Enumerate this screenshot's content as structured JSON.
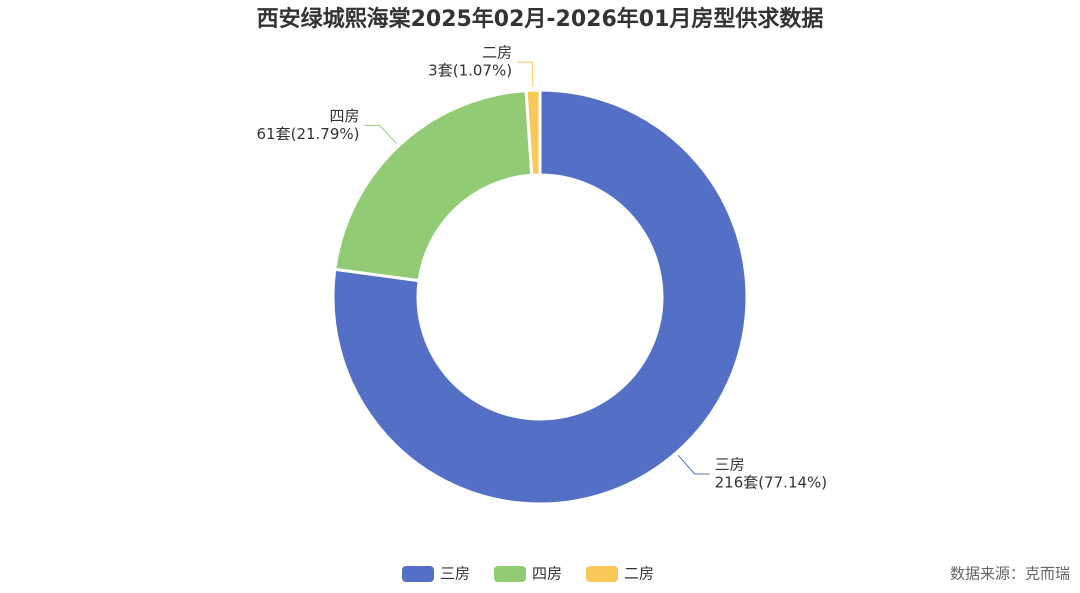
{
  "chart_data": {
    "type": "pie",
    "title": "西安绿城熙海棠2025年02月-2026年01月房型供求数据",
    "categories": [
      "三房",
      "四房",
      "二房"
    ],
    "values": [
      216,
      61,
      3
    ],
    "value_labels": [
      "216套(77.14%)",
      "61套(21.79%)",
      "3套(1.07%)"
    ],
    "colors": [
      "#5470c6",
      "#91cc75",
      "#fac858"
    ],
    "source": "数据来源：克而瑞"
  }
}
